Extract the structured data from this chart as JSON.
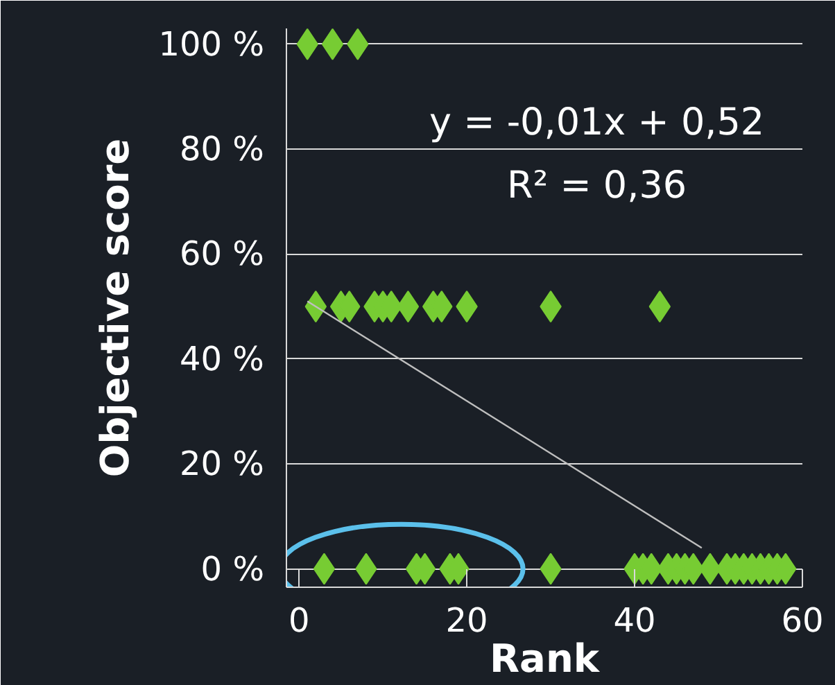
{
  "chart_data": {
    "type": "scatter",
    "xlabel": "Rank",
    "ylabel": "Objective score",
    "xlim": [
      -1.5,
      60
    ],
    "xticks": [
      0,
      20,
      40,
      60
    ],
    "ylim": [
      -3.5,
      103
    ],
    "yticks": [
      {
        "value": 0,
        "label": "0 %"
      },
      {
        "value": 20,
        "label": "20 %"
      },
      {
        "value": 40,
        "label": "40 %"
      },
      {
        "value": 60,
        "label": "60 %"
      },
      {
        "value": 80,
        "label": "80 %"
      },
      {
        "value": 100,
        "label": "100 %"
      }
    ],
    "grid": "y",
    "annotations": [
      "y = -0,01x + 0,52",
      "R² = 0,36"
    ],
    "series": [
      {
        "color": "#77cc33",
        "marker": "diamond",
        "x": [
          1,
          4,
          7,
          2,
          5,
          6,
          9,
          10,
          11,
          13,
          16,
          17,
          20,
          30,
          43,
          3,
          8,
          14,
          15,
          18,
          19,
          30,
          40,
          41,
          42,
          44,
          45,
          46,
          47,
          49,
          51,
          52,
          53,
          54,
          55,
          56,
          57,
          58
        ],
        "values": [
          100,
          100,
          100,
          50,
          50,
          50,
          50,
          50,
          50,
          50,
          50,
          50,
          50,
          50,
          50,
          0,
          0,
          0,
          0,
          0,
          0,
          0,
          0,
          0,
          0,
          0,
          0,
          0,
          0,
          0,
          0,
          0,
          0,
          0,
          0,
          0,
          0,
          0
        ]
      },
      {
        "type": "line",
        "marker": "none",
        "color": "#bfbfbf",
        "x": [
          1,
          48
        ],
        "values": [
          51,
          4
        ]
      }
    ]
  }
}
